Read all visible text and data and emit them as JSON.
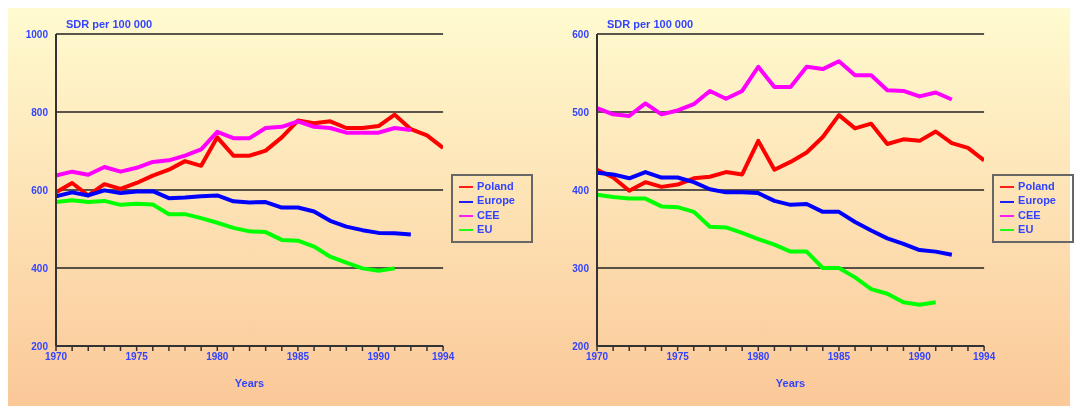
{
  "chart_data": [
    {
      "type": "line",
      "ylabel": "SDR per 100 000",
      "xlabel": "Years",
      "x": [
        1970,
        1971,
        1972,
        1973,
        1974,
        1975,
        1976,
        1977,
        1978,
        1979,
        1980,
        1981,
        1982,
        1983,
        1984,
        1985,
        1986,
        1987,
        1988,
        1989,
        1990,
        1991,
        1992,
        1993,
        1994
      ],
      "series": [
        {
          "name": "Poland",
          "color": "#ff0000",
          "values": [
            594,
            618,
            586,
            615,
            603,
            618,
            637,
            652,
            674,
            662,
            735,
            688,
            688,
            701,
            735,
            778,
            771,
            776,
            759,
            759,
            764,
            793,
            756,
            740,
            708
          ]
        },
        {
          "name": "Europe",
          "color": "#0000ff",
          "values": [
            584,
            594,
            586,
            599,
            592,
            596,
            597,
            579,
            581,
            584,
            586,
            571,
            568,
            569,
            555,
            555,
            545,
            521,
            506,
            497,
            490,
            489,
            486,
            null,
            null
          ]
        },
        {
          "name": "CEE",
          "color": "#ff00ff",
          "values": [
            637,
            647,
            639,
            659,
            647,
            657,
            672,
            676,
            688,
            704,
            749,
            733,
            733,
            759,
            762,
            776,
            762,
            759,
            747,
            747,
            747,
            759,
            754,
            null,
            null
          ]
        },
        {
          "name": "EU",
          "color": "#00ff00",
          "values": [
            569,
            574,
            569,
            572,
            562,
            565,
            563,
            538,
            538,
            528,
            516,
            503,
            494,
            492,
            472,
            470,
            455,
            429,
            414,
            399,
            393,
            399,
            null,
            null,
            null
          ]
        }
      ],
      "xlim": [
        1970,
        1994
      ],
      "xticks": [
        1970,
        {
          "value": 1971,
          "label": null
        },
        {
          "value": 1972,
          "label": null
        },
        {
          "value": 1973,
          "label": null
        },
        {
          "value": 1974,
          "label": null
        },
        1975,
        {
          "value": 1976,
          "label": null
        },
        {
          "value": 1977,
          "label": null
        },
        {
          "value": 1978,
          "label": null
        },
        {
          "value": 1979,
          "label": null
        },
        1980,
        {
          "value": 1981,
          "label": null
        },
        {
          "value": 1982,
          "label": null
        },
        {
          "value": 1983,
          "label": null
        },
        {
          "value": 1984,
          "label": null
        },
        1985,
        {
          "value": 1986,
          "label": null
        },
        {
          "value": 1987,
          "label": null
        },
        {
          "value": 1988,
          "label": null
        },
        {
          "value": 1989,
          "label": null
        },
        1990,
        {
          "value": 1991,
          "label": null
        },
        {
          "value": 1992,
          "label": null
        },
        {
          "value": 1993,
          "label": null
        },
        1994
      ],
      "ylim": [
        200,
        1000
      ],
      "yticks": [
        200,
        400,
        600,
        800,
        1000
      ],
      "grid": "y",
      "legend": "right",
      "marker": "none"
    },
    {
      "type": "line",
      "ylabel": "SDR per 100 000",
      "xlabel": "Years",
      "x": [
        1970,
        1971,
        1972,
        1973,
        1974,
        1975,
        1976,
        1977,
        1978,
        1979,
        1980,
        1981,
        1982,
        1983,
        1984,
        1985,
        1986,
        1987,
        1988,
        1989,
        1990,
        1991,
        1992,
        1993,
        1994
      ],
      "series": [
        {
          "name": "Poland",
          "color": "#ff0000",
          "values": [
            426,
            416,
            399,
            410,
            404,
            407,
            415,
            417,
            423,
            420,
            463,
            426,
            436,
            448,
            468,
            496,
            479,
            485,
            459,
            465,
            463,
            475,
            460,
            454,
            438
          ]
        },
        {
          "name": "Europe",
          "color": "#0000ff",
          "values": [
            422,
            420,
            415,
            423,
            416,
            416,
            410,
            401,
            397,
            397,
            396,
            386,
            381,
            382,
            372,
            372,
            359,
            348,
            338,
            331,
            323,
            321,
            317,
            null,
            null
          ]
        },
        {
          "name": "CEE",
          "color": "#ff00ff",
          "values": [
            505,
            497,
            495,
            511,
            497,
            502,
            510,
            527,
            517,
            527,
            558,
            532,
            532,
            558,
            555,
            565,
            547,
            547,
            528,
            527,
            520,
            525,
            516,
            null,
            null
          ]
        },
        {
          "name": "EU",
          "color": "#00ff00",
          "values": [
            394,
            391,
            389,
            389,
            379,
            378,
            372,
            353,
            352,
            345,
            337,
            330,
            321,
            321,
            300,
            300,
            288,
            273,
            267,
            256,
            253,
            256,
            null,
            null,
            null
          ]
        }
      ],
      "xlim": [
        1970,
        1994
      ],
      "xticks": [
        1970,
        {
          "value": 1971,
          "label": null
        },
        {
          "value": 1972,
          "label": null
        },
        {
          "value": 1973,
          "label": null
        },
        {
          "value": 1974,
          "label": null
        },
        1975,
        {
          "value": 1976,
          "label": null
        },
        {
          "value": 1977,
          "label": null
        },
        {
          "value": 1978,
          "label": null
        },
        {
          "value": 1979,
          "label": null
        },
        1980,
        {
          "value": 1981,
          "label": null
        },
        {
          "value": 1982,
          "label": null
        },
        {
          "value": 1983,
          "label": null
        },
        {
          "value": 1984,
          "label": null
        },
        1985,
        {
          "value": 1986,
          "label": null
        },
        {
          "value": 1987,
          "label": null
        },
        {
          "value": 1988,
          "label": null
        },
        {
          "value": 1989,
          "label": null
        },
        1990,
        {
          "value": 1991,
          "label": null
        },
        {
          "value": 1992,
          "label": null
        },
        {
          "value": 1993,
          "label": null
        },
        1994
      ],
      "ylim": [
        200,
        600
      ],
      "yticks": [
        200,
        300,
        400,
        500,
        600
      ],
      "grid": "y",
      "legend": "right",
      "marker": "none"
    }
  ]
}
